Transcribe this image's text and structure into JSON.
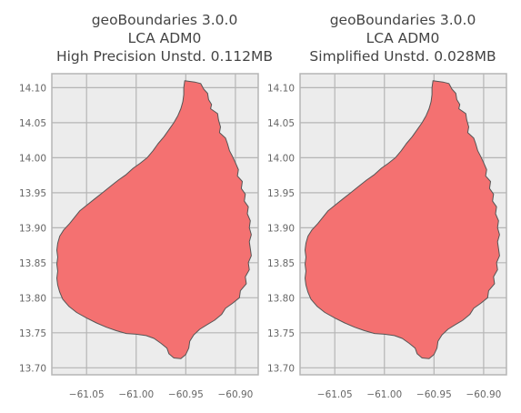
{
  "panels": [
    {
      "title_lines": [
        "geoBoundaries 3.0.0",
        "LCA ADM0",
        "High Precision Unstd. 0.112MB"
      ],
      "x_ticks": [
        "−61.05",
        "−61.00",
        "−60.95",
        "−60.90"
      ],
      "y_ticks": [
        "14.10",
        "14.05",
        "14.00",
        "13.95",
        "13.90",
        "13.85",
        "13.80",
        "13.75",
        "13.70"
      ]
    },
    {
      "title_lines": [
        "geoBoundaries 3.0.0",
        "LCA ADM0",
        "Simplified Unstd. 0.028MB"
      ],
      "x_ticks": [
        "−61.05",
        "−61.00",
        "−60.95",
        "−60.90"
      ],
      "y_ticks": [
        "14.10",
        "14.05",
        "14.00",
        "13.95",
        "13.90",
        "13.85",
        "13.80",
        "13.75",
        "13.70"
      ]
    }
  ],
  "map": {
    "fill_color": "#f47171",
    "edge_color": "#555555",
    "plot_bg": "#ececec",
    "grid_color": "#b5b5b5",
    "x_tick_values": [
      -61.05,
      -61.0,
      -60.95,
      -60.9
    ],
    "y_tick_values": [
      14.1,
      14.05,
      14.0,
      13.95,
      13.9,
      13.85,
      13.8,
      13.75,
      13.7
    ],
    "x_range": [
      -61.085,
      -60.877
    ],
    "y_range": [
      13.69,
      14.12
    ],
    "outline": [
      [
        -60.951,
        14.11
      ],
      [
        -60.941,
        14.108
      ],
      [
        -60.935,
        14.106
      ],
      [
        -60.932,
        14.098
      ],
      [
        -60.928,
        14.092
      ],
      [
        -60.927,
        14.083
      ],
      [
        -60.924,
        14.076
      ],
      [
        -60.925,
        14.07
      ],
      [
        -60.918,
        14.063
      ],
      [
        -60.917,
        14.054
      ],
      [
        -60.915,
        14.044
      ],
      [
        -60.916,
        14.036
      ],
      [
        -60.91,
        14.028
      ],
      [
        -60.908,
        14.02
      ],
      [
        -60.906,
        14.01
      ],
      [
        -60.903,
        14.002
      ],
      [
        -60.9,
        13.993
      ],
      [
        -60.897,
        13.983
      ],
      [
        -60.898,
        13.974
      ],
      [
        -60.893,
        13.966
      ],
      [
        -60.894,
        13.956
      ],
      [
        -60.89,
        13.948
      ],
      [
        -60.891,
        13.938
      ],
      [
        -60.887,
        13.93
      ],
      [
        -60.888,
        13.92
      ],
      [
        -60.885,
        13.91
      ],
      [
        -60.886,
        13.9
      ],
      [
        -60.884,
        13.89
      ],
      [
        -60.886,
        13.88
      ],
      [
        -60.885,
        13.87
      ],
      [
        -60.884,
        13.86
      ],
      [
        -60.887,
        13.85
      ],
      [
        -60.886,
        13.84
      ],
      [
        -60.89,
        13.83
      ],
      [
        -60.889,
        13.82
      ],
      [
        -60.895,
        13.81
      ],
      [
        -60.896,
        13.8
      ],
      [
        -60.903,
        13.792
      ],
      [
        -60.91,
        13.785
      ],
      [
        -60.914,
        13.776
      ],
      [
        -60.921,
        13.768
      ],
      [
        -60.928,
        13.762
      ],
      [
        -60.936,
        13.755
      ],
      [
        -60.942,
        13.747
      ],
      [
        -60.946,
        13.738
      ],
      [
        -60.947,
        13.728
      ],
      [
        -60.95,
        13.719
      ],
      [
        -60.955,
        13.713
      ],
      [
        -60.962,
        13.714
      ],
      [
        -60.967,
        13.72
      ],
      [
        -60.969,
        13.728
      ],
      [
        -60.975,
        13.735
      ],
      [
        -60.982,
        13.742
      ],
      [
        -60.99,
        13.746
      ],
      [
        -61.0,
        13.748
      ],
      [
        -61.01,
        13.749
      ],
      [
        -61.02,
        13.753
      ],
      [
        -61.03,
        13.758
      ],
      [
        -61.04,
        13.764
      ],
      [
        -61.05,
        13.771
      ],
      [
        -61.06,
        13.779
      ],
      [
        -61.068,
        13.788
      ],
      [
        -61.074,
        13.798
      ],
      [
        -61.077,
        13.808
      ],
      [
        -61.079,
        13.818
      ],
      [
        -61.08,
        13.828
      ],
      [
        -61.079,
        13.838
      ],
      [
        -61.08,
        13.848
      ],
      [
        -61.079,
        13.858
      ],
      [
        -61.08,
        13.868
      ],
      [
        -61.079,
        13.878
      ],
      [
        -61.077,
        13.888
      ],
      [
        -61.073,
        13.897
      ],
      [
        -61.067,
        13.906
      ],
      [
        -61.062,
        13.915
      ],
      [
        -61.057,
        13.924
      ],
      [
        -61.05,
        13.932
      ],
      [
        -61.042,
        13.941
      ],
      [
        -61.034,
        13.95
      ],
      [
        -61.026,
        13.959
      ],
      [
        -61.018,
        13.968
      ],
      [
        -61.01,
        13.976
      ],
      [
        -61.003,
        13.985
      ],
      [
        -60.996,
        13.992
      ],
      [
        -60.989,
        14.0
      ],
      [
        -60.983,
        14.01
      ],
      [
        -60.978,
        14.02
      ],
      [
        -60.972,
        14.03
      ],
      [
        -60.967,
        14.04
      ],
      [
        -60.962,
        14.05
      ],
      [
        -60.958,
        14.06
      ],
      [
        -60.955,
        14.07
      ],
      [
        -60.953,
        14.08
      ],
      [
        -60.952,
        14.09
      ],
      [
        -60.952,
        14.1
      ]
    ]
  }
}
